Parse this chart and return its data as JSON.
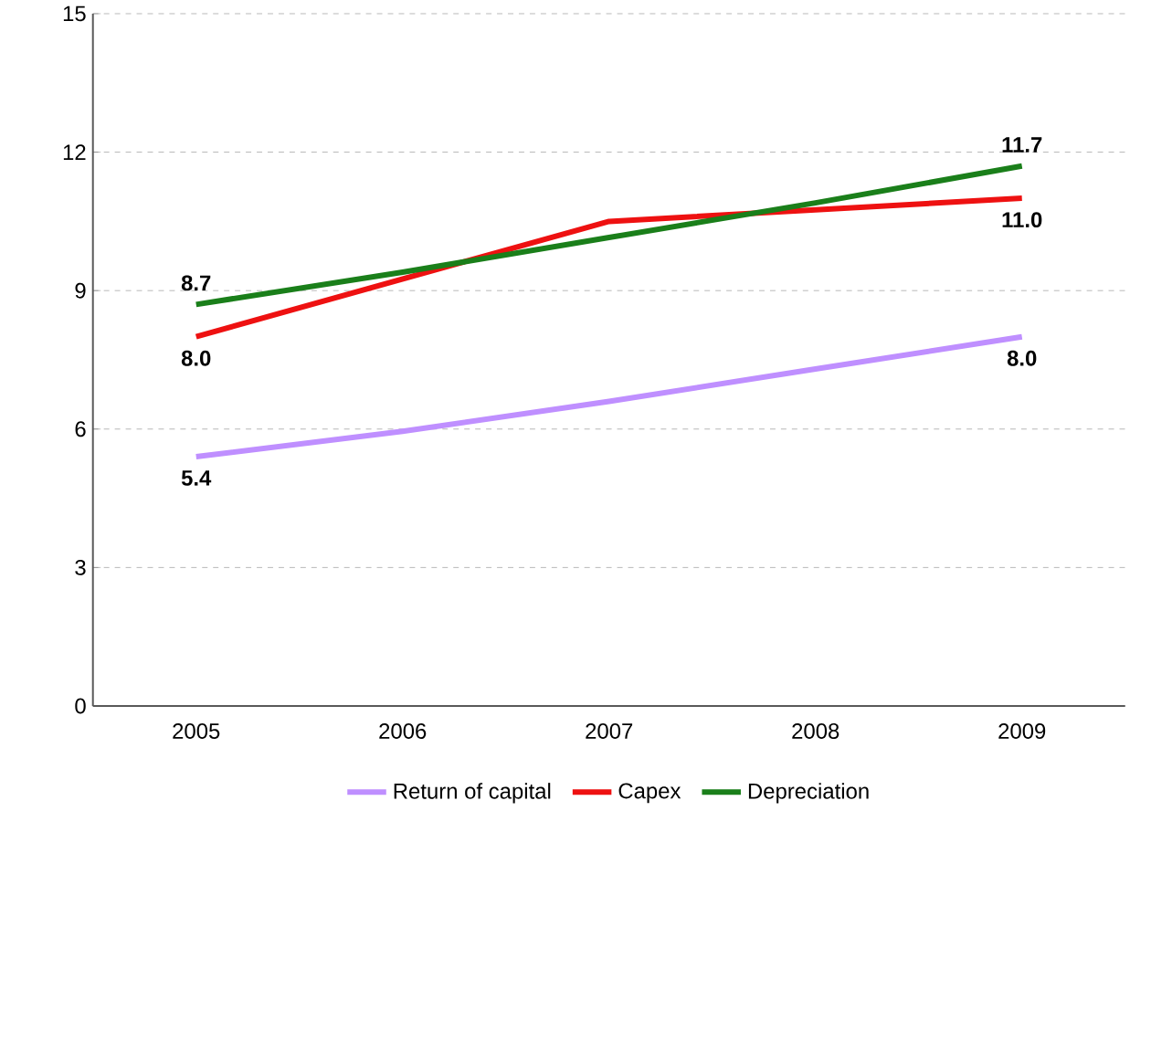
{
  "chart_data": {
    "type": "line",
    "categories": [
      "2005",
      "2006",
      "2007",
      "2008",
      "2009"
    ],
    "series": [
      {
        "name": "Return of capital",
        "color": "#bf8fff",
        "values": [
          5.4,
          5.95,
          6.6,
          7.3,
          8.0
        ],
        "value_labels": [
          "5.4",
          null,
          null,
          null,
          "8.0"
        ]
      },
      {
        "name": "Capex",
        "color": "#ee1111",
        "values": [
          8.0,
          9.25,
          10.5,
          10.75,
          11.0
        ],
        "value_labels": [
          "8.0",
          null,
          null,
          null,
          "11.0"
        ]
      },
      {
        "name": "Depreciation",
        "color": "#1a7f1a",
        "values": [
          8.7,
          9.4,
          10.15,
          10.9,
          11.7
        ],
        "value_labels": [
          "8.7",
          null,
          null,
          null,
          "11.7"
        ]
      }
    ],
    "ylim": [
      0,
      15
    ],
    "yticks": [
      0,
      3,
      6,
      9,
      12,
      15
    ],
    "grid": "y",
    "legend": "bottom",
    "marker": "none",
    "line_style": "solid"
  }
}
